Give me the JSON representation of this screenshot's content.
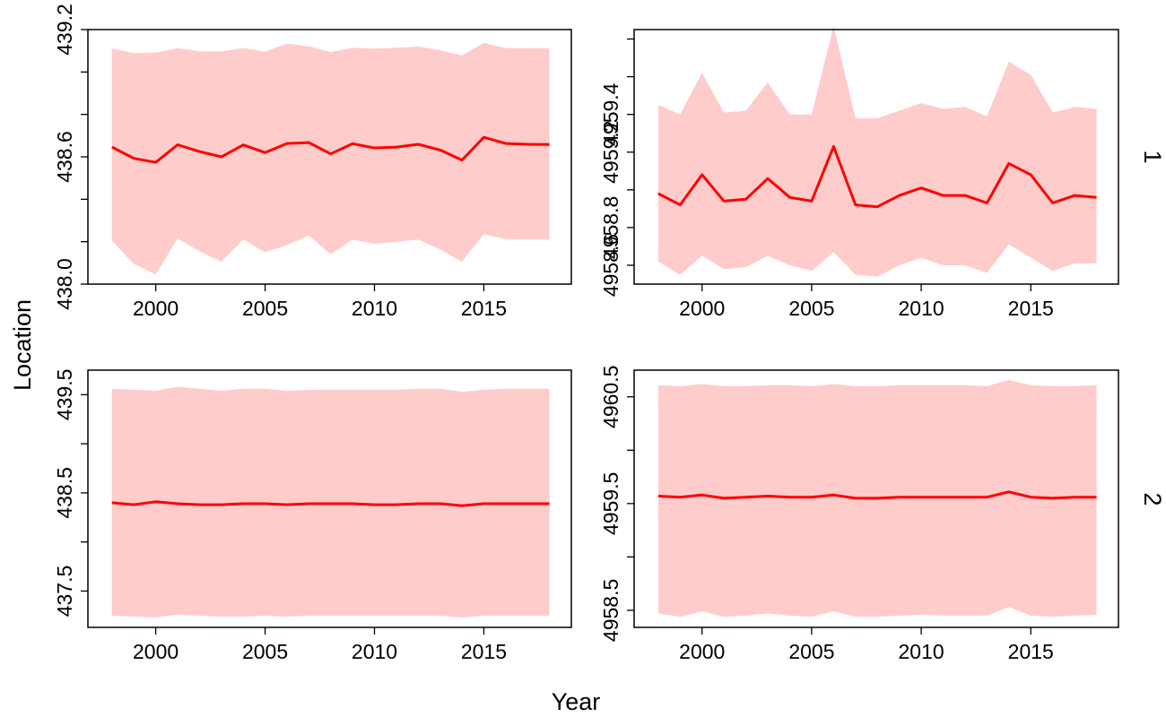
{
  "figure": {
    "xlabel": "Year",
    "ylabel": "Location",
    "row_labels": [
      "1",
      "2"
    ]
  },
  "colors": {
    "band": "#ffcccc",
    "line": "#ff0000",
    "axis": "#000000"
  },
  "chart_data": [
    {
      "type": "area",
      "panel": "row 1, left",
      "x": [
        1998,
        1999,
        2000,
        2001,
        2002,
        2003,
        2004,
        2005,
        2006,
        2007,
        2008,
        2009,
        2010,
        2011,
        2012,
        2013,
        2014,
        2015,
        2016,
        2017,
        2018
      ],
      "xlim": [
        1996.9,
        2019.0
      ],
      "xticks": [
        2000,
        2005,
        2010,
        2015
      ],
      "ylim": [
        438.0,
        439.2
      ],
      "yticks": [
        438.0,
        438.2,
        438.4,
        438.6,
        438.8,
        439.0,
        439.2
      ],
      "ytick_labels": [
        "438.0",
        "",
        "",
        "438.6",
        "",
        "",
        "439.2"
      ],
      "series": [
        {
          "role": "mean",
          "values": [
            438.646,
            438.593,
            438.574,
            438.657,
            438.625,
            438.6,
            438.656,
            438.62,
            438.663,
            438.667,
            438.614,
            438.662,
            438.642,
            438.646,
            438.659,
            438.632,
            438.585,
            438.692,
            438.663,
            438.659,
            438.658
          ]
        },
        {
          "role": "upper",
          "values": [
            439.111,
            439.089,
            439.092,
            439.112,
            439.098,
            439.097,
            439.113,
            439.096,
            439.134,
            439.121,
            439.094,
            439.114,
            439.11,
            439.114,
            439.12,
            439.103,
            439.078,
            439.138,
            439.113,
            439.112,
            439.112
          ]
        },
        {
          "role": "lower",
          "values": [
            438.205,
            438.095,
            438.045,
            438.215,
            438.155,
            438.105,
            438.21,
            438.15,
            438.184,
            438.229,
            438.141,
            438.209,
            438.19,
            438.199,
            438.21,
            438.164,
            438.105,
            438.236,
            438.212,
            438.21,
            438.21
          ]
        }
      ]
    },
    {
      "type": "area",
      "panel": "row 1, right",
      "x": [
        1998,
        1999,
        2000,
        2001,
        2002,
        2003,
        2004,
        2005,
        2006,
        2007,
        2008,
        2009,
        2010,
        2011,
        2012,
        2013,
        2014,
        2015,
        2016,
        2017,
        2018
      ],
      "xlim": [
        1996.9,
        2019.0
      ],
      "xticks": [
        2000,
        2005,
        2010,
        2015
      ],
      "ylim": [
        4958.5,
        4959.85
      ],
      "yticks": [
        4958.6,
        4958.8,
        4959.0,
        4959.2,
        4959.4,
        4959.6,
        4959.8
      ],
      "ytick_labels": [
        "4958.6",
        "4958.8",
        "",
        "4959.2",
        "4959.4",
        "",
        ""
      ],
      "series": [
        {
          "role": "mean",
          "values": [
            4958.98,
            4958.92,
            4959.08,
            4958.94,
            4958.95,
            4959.06,
            4958.96,
            4958.94,
            4959.23,
            4958.92,
            4958.91,
            4958.97,
            4959.01,
            4958.97,
            4958.97,
            4958.93,
            4959.14,
            4959.08,
            4958.93,
            4958.97,
            4958.96
          ]
        },
        {
          "role": "upper",
          "values": [
            4959.45,
            4959.4,
            4959.62,
            4959.41,
            4959.42,
            4959.57,
            4959.4,
            4959.4,
            4959.87,
            4959.38,
            4959.38,
            4959.42,
            4959.46,
            4959.43,
            4959.44,
            4959.39,
            4959.68,
            4959.61,
            4959.41,
            4959.44,
            4959.43
          ]
        },
        {
          "role": "lower",
          "values": [
            4958.62,
            4958.55,
            4958.65,
            4958.58,
            4958.59,
            4958.65,
            4958.6,
            4958.57,
            4958.67,
            4958.55,
            4958.54,
            4958.6,
            4958.64,
            4958.6,
            4958.6,
            4958.56,
            4958.71,
            4958.64,
            4958.57,
            4958.61,
            4958.61
          ]
        }
      ]
    },
    {
      "type": "area",
      "panel": "row 2, left",
      "x": [
        1998,
        1999,
        2000,
        2001,
        2002,
        2003,
        2004,
        2005,
        2006,
        2007,
        2008,
        2009,
        2010,
        2011,
        2012,
        2013,
        2014,
        2015,
        2016,
        2017,
        2018
      ],
      "xlim": [
        1996.9,
        2019.0
      ],
      "xticks": [
        2000,
        2005,
        2010,
        2015
      ],
      "ylim": [
        437.13,
        439.75
      ],
      "yticks": [
        437.5,
        438.0,
        438.5,
        439.0,
        439.5
      ],
      "ytick_labels": [
        "437.5",
        "",
        "438.5",
        "",
        "439.5"
      ],
      "series": [
        {
          "role": "mean",
          "values": [
            438.4,
            438.38,
            438.41,
            438.39,
            438.38,
            438.38,
            438.39,
            438.39,
            438.38,
            438.39,
            438.39,
            438.39,
            438.38,
            438.38,
            438.39,
            438.39,
            438.37,
            438.39,
            438.39,
            438.39,
            438.39
          ]
        },
        {
          "role": "upper",
          "values": [
            439.56,
            439.55,
            439.54,
            439.58,
            439.56,
            439.54,
            439.56,
            439.56,
            439.54,
            439.55,
            439.55,
            439.55,
            439.55,
            439.55,
            439.56,
            439.56,
            439.53,
            439.55,
            439.56,
            439.56,
            439.56
          ]
        },
        {
          "role": "lower",
          "values": [
            437.25,
            437.24,
            437.23,
            437.26,
            437.25,
            437.24,
            437.24,
            437.25,
            437.24,
            437.25,
            437.25,
            437.25,
            437.25,
            437.25,
            437.25,
            437.25,
            437.23,
            437.25,
            437.25,
            437.25,
            437.25
          ]
        }
      ]
    },
    {
      "type": "area",
      "panel": "row 2, right",
      "x": [
        1998,
        1999,
        2000,
        2001,
        2002,
        2003,
        2004,
        2005,
        2006,
        2007,
        2008,
        2009,
        2010,
        2011,
        2012,
        2013,
        2014,
        2015,
        2016,
        2017,
        2018
      ],
      "xlim": [
        1996.9,
        2019.0
      ],
      "xticks": [
        2000,
        2005,
        2010,
        2015
      ],
      "ylim": [
        4958.34,
        4960.75
      ],
      "yticks": [
        4958.5,
        4959.0,
        4959.5,
        4960.0,
        4960.5
      ],
      "ytick_labels": [
        "4958.5",
        "",
        "4959.5",
        "",
        "4960.5"
      ],
      "series": [
        {
          "role": "mean",
          "values": [
            4959.57,
            4959.56,
            4959.58,
            4959.55,
            4959.56,
            4959.57,
            4959.56,
            4959.56,
            4959.58,
            4959.55,
            4959.55,
            4959.56,
            4959.56,
            4959.56,
            4959.56,
            4959.56,
            4959.61,
            4959.56,
            4959.55,
            4959.56,
            4959.56
          ]
        },
        {
          "role": "upper",
          "values": [
            4960.61,
            4960.6,
            4960.62,
            4960.6,
            4960.6,
            4960.61,
            4960.61,
            4960.6,
            4960.62,
            4960.6,
            4960.6,
            4960.61,
            4960.61,
            4960.61,
            4960.61,
            4960.6,
            4960.66,
            4960.61,
            4960.6,
            4960.6,
            4960.61
          ]
        },
        {
          "role": "lower",
          "values": [
            4958.47,
            4958.44,
            4958.49,
            4958.44,
            4958.45,
            4958.47,
            4958.45,
            4958.44,
            4958.49,
            4958.44,
            4958.44,
            4958.45,
            4958.46,
            4958.45,
            4958.45,
            4958.45,
            4958.53,
            4958.45,
            4958.44,
            4958.45,
            4958.46
          ]
        }
      ]
    }
  ]
}
